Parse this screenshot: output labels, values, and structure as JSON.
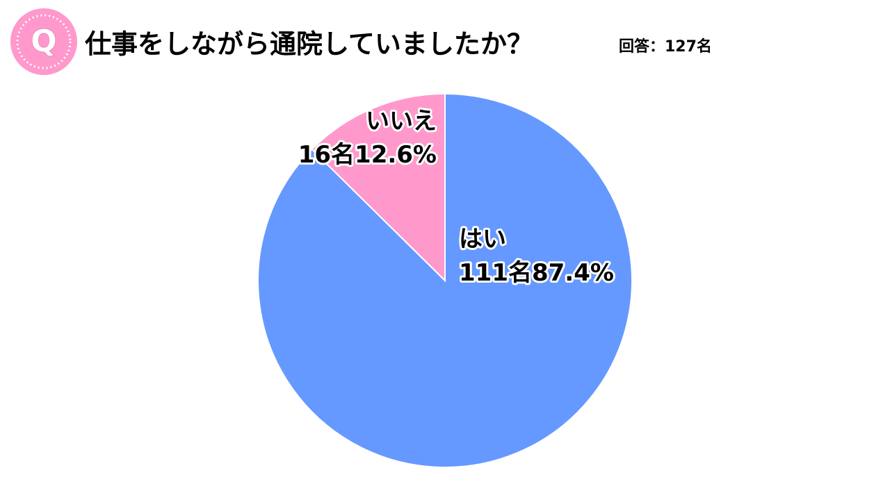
{
  "icon": "Q",
  "chart_data": {
    "type": "pie",
    "title": "仕事をしながら通院していましたか？",
    "subtitle": "回答：127名",
    "categories": [
      "はい",
      "いいえ"
    ],
    "values": [
      111,
      16
    ],
    "value_labels": [
      "111名",
      "16名"
    ],
    "percents": [
      87.4,
      12.6
    ],
    "percent_labels": [
      "87.4%",
      "12.6%"
    ],
    "colors": [
      "#6699ff",
      "#ff99cc"
    ]
  }
}
